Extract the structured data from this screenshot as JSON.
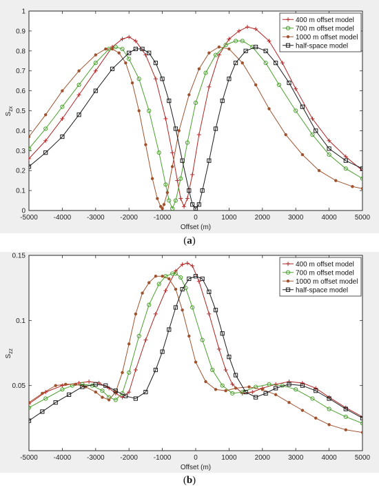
{
  "captions": {
    "a": "a",
    "b": "b"
  },
  "chart_data": [
    {
      "type": "line",
      "panel": "a",
      "xlabel": "Offset (m)",
      "ylabel": "S",
      "ylabel_sub": "zx",
      "xlim": [
        -5000,
        5000
      ],
      "ylim": [
        0,
        1
      ],
      "xticks": [
        -5000,
        -4000,
        -3000,
        -2000,
        -1000,
        0,
        1000,
        2000,
        3000,
        4000,
        5000
      ],
      "yticks": [
        0,
        0.1,
        0.2,
        0.3,
        0.4,
        0.5,
        0.6,
        0.7,
        0.8,
        0.9,
        1
      ],
      "legend_position": "top-right",
      "grid": false,
      "series": [
        {
          "name": "400 m offset model",
          "color": "#b22222",
          "marker": "plus",
          "x": [
            -5000,
            -4500,
            -4000,
            -3500,
            -3000,
            -2500,
            -2200,
            -2000,
            -1800,
            -1500,
            -1200,
            -900,
            -700,
            -550,
            -450,
            -350,
            -250,
            -100,
            100,
            400,
            700,
            1000,
            1300,
            1550,
            1800,
            2200,
            2600,
            3000,
            3500,
            4000,
            4500,
            5000
          ],
          "y": [
            0.26,
            0.35,
            0.46,
            0.58,
            0.7,
            0.82,
            0.86,
            0.87,
            0.85,
            0.78,
            0.66,
            0.46,
            0.29,
            0.15,
            0.06,
            0.02,
            0.06,
            0.18,
            0.38,
            0.62,
            0.78,
            0.86,
            0.9,
            0.92,
            0.91,
            0.85,
            0.74,
            0.61,
            0.46,
            0.35,
            0.27,
            0.2
          ]
        },
        {
          "name": "700 m offset model",
          "color": "#4aa02c",
          "marker": "circle",
          "x": [
            -5000,
            -4500,
            -4000,
            -3500,
            -3000,
            -2600,
            -2400,
            -2200,
            -2000,
            -1700,
            -1400,
            -1100,
            -900,
            -800,
            -700,
            -600,
            -450,
            -250,
            0,
            300,
            600,
            900,
            1200,
            1400,
            1700,
            2100,
            2500,
            3000,
            3500,
            4000,
            4500,
            5000
          ],
          "y": [
            0.31,
            0.41,
            0.52,
            0.63,
            0.74,
            0.81,
            0.82,
            0.81,
            0.76,
            0.66,
            0.5,
            0.29,
            0.13,
            0.05,
            0.01,
            0.05,
            0.16,
            0.34,
            0.54,
            0.69,
            0.78,
            0.83,
            0.85,
            0.85,
            0.82,
            0.74,
            0.63,
            0.5,
            0.38,
            0.28,
            0.21,
            0.16
          ]
        },
        {
          "name": "1000 m offset model",
          "color": "#a0522d",
          "marker": "dot",
          "x": [
            -5000,
            -4500,
            -4000,
            -3500,
            -3000,
            -2700,
            -2500,
            -2300,
            -2100,
            -1900,
            -1700,
            -1500,
            -1300,
            -1150,
            -1050,
            -1000,
            -950,
            -850,
            -700,
            -500,
            -200,
            100,
            400,
            700,
            1000,
            1400,
            1800,
            2200,
            2700,
            3200,
            3700,
            4200,
            4700,
            5000
          ],
          "y": [
            0.37,
            0.48,
            0.6,
            0.7,
            0.78,
            0.81,
            0.81,
            0.79,
            0.74,
            0.64,
            0.5,
            0.33,
            0.16,
            0.06,
            0.02,
            0.01,
            0.03,
            0.09,
            0.22,
            0.4,
            0.58,
            0.71,
            0.79,
            0.82,
            0.81,
            0.74,
            0.63,
            0.51,
            0.38,
            0.28,
            0.2,
            0.15,
            0.12,
            0.11
          ]
        },
        {
          "name": "half-space model",
          "color": "#1a1a1a",
          "marker": "square",
          "x": [
            -5000,
            -4500,
            -4000,
            -3500,
            -3000,
            -2500,
            -2000,
            -1800,
            -1600,
            -1400,
            -1200,
            -1000,
            -800,
            -600,
            -400,
            -200,
            -100,
            0,
            100,
            200,
            400,
            600,
            800,
            1000,
            1200,
            1500,
            1800,
            2100,
            2400,
            2800,
            3200,
            3600,
            4000,
            4500,
            5000
          ],
          "y": [
            0.22,
            0.29,
            0.37,
            0.48,
            0.6,
            0.71,
            0.79,
            0.81,
            0.81,
            0.79,
            0.74,
            0.66,
            0.55,
            0.41,
            0.25,
            0.1,
            0.03,
            0.01,
            0.03,
            0.1,
            0.25,
            0.41,
            0.55,
            0.66,
            0.74,
            0.8,
            0.82,
            0.8,
            0.74,
            0.64,
            0.52,
            0.4,
            0.31,
            0.25,
            0.21
          ]
        }
      ]
    },
    {
      "type": "line",
      "panel": "b",
      "xlabel": "Offset (m)",
      "ylabel": "S",
      "ylabel_sub": "zz",
      "xlim": [
        -5000,
        5000
      ],
      "ylim": [
        0,
        0.15
      ],
      "xticks": [
        -5000,
        -4000,
        -3000,
        -2000,
        -1000,
        0,
        1000,
        2000,
        3000,
        4000,
        5000
      ],
      "yticks": [
        0.05,
        0.1,
        0.15
      ],
      "legend_position": "top-right",
      "grid": false,
      "series": [
        {
          "name": "400 m offset model",
          "color": "#b22222",
          "marker": "plus",
          "x": [
            -5000,
            -4500,
            -4000,
            -3500,
            -3200,
            -2900,
            -2600,
            -2400,
            -2200,
            -2000,
            -1800,
            -1500,
            -1200,
            -900,
            -600,
            -400,
            -250,
            -100,
            100,
            400,
            700,
            900,
            1100,
            1400,
            1700,
            2000,
            2400,
            2800,
            3200,
            3600,
            4000,
            4500,
            5000
          ],
          "y": [
            0.036,
            0.045,
            0.05,
            0.052,
            0.053,
            0.052,
            0.048,
            0.044,
            0.041,
            0.045,
            0.062,
            0.085,
            0.105,
            0.123,
            0.138,
            0.143,
            0.144,
            0.142,
            0.13,
            0.105,
            0.078,
            0.062,
            0.051,
            0.044,
            0.045,
            0.048,
            0.051,
            0.053,
            0.052,
            0.048,
            0.041,
            0.033,
            0.026
          ]
        },
        {
          "name": "700 m offset model",
          "color": "#4aa02c",
          "marker": "circle",
          "x": [
            -5000,
            -4500,
            -4000,
            -3700,
            -3400,
            -3100,
            -2800,
            -2600,
            -2400,
            -2200,
            -2000,
            -1700,
            -1400,
            -1100,
            -900,
            -700,
            -600,
            -450,
            -300,
            -100,
            200,
            500,
            800,
            1100,
            1400,
            1800,
            2200,
            2600,
            3000,
            3500,
            4000,
            4500,
            5000
          ],
          "y": [
            0.033,
            0.04,
            0.047,
            0.05,
            0.051,
            0.05,
            0.046,
            0.041,
            0.039,
            0.044,
            0.06,
            0.088,
            0.112,
            0.128,
            0.134,
            0.136,
            0.136,
            0.133,
            0.125,
            0.11,
            0.085,
            0.062,
            0.05,
            0.044,
            0.045,
            0.049,
            0.051,
            0.05,
            0.047,
            0.04,
            0.032,
            0.026,
            0.021
          ]
        },
        {
          "name": "1000 m offset model",
          "color": "#a0522d",
          "marker": "dot",
          "x": [
            -5000,
            -4600,
            -4200,
            -3900,
            -3600,
            -3300,
            -3000,
            -2800,
            -2600,
            -2400,
            -2200,
            -2000,
            -1800,
            -1600,
            -1400,
            -1200,
            -1000,
            -800,
            -600,
            -400,
            -200,
            0,
            300,
            600,
            900,
            1200,
            1600,
            2000,
            2400,
            2800,
            3200,
            3600,
            4000,
            4500,
            5000
          ],
          "y": [
            0.037,
            0.044,
            0.05,
            0.051,
            0.051,
            0.049,
            0.045,
            0.041,
            0.039,
            0.045,
            0.06,
            0.082,
            0.105,
            0.121,
            0.129,
            0.134,
            0.134,
            0.132,
            0.124,
            0.108,
            0.088,
            0.068,
            0.053,
            0.047,
            0.046,
            0.048,
            0.049,
            0.047,
            0.043,
            0.037,
            0.031,
            0.025,
            0.02,
            0.016,
            0.014
          ]
        },
        {
          "name": "half-space model",
          "color": "#1a1a1a",
          "marker": "square",
          "x": [
            -5000,
            -4600,
            -4200,
            -3800,
            -3400,
            -3000,
            -2700,
            -2400,
            -2100,
            -1800,
            -1500,
            -1200,
            -1000,
            -800,
            -600,
            -400,
            -200,
            0,
            200,
            400,
            600,
            800,
            1000,
            1200,
            1500,
            1800,
            2100,
            2400,
            2800,
            3200,
            3600,
            4000,
            4500,
            5000
          ],
          "y": [
            0.023,
            0.03,
            0.037,
            0.043,
            0.049,
            0.051,
            0.05,
            0.046,
            0.042,
            0.04,
            0.045,
            0.062,
            0.076,
            0.093,
            0.11,
            0.124,
            0.132,
            0.134,
            0.132,
            0.122,
            0.108,
            0.09,
            0.072,
            0.058,
            0.045,
            0.041,
            0.044,
            0.048,
            0.051,
            0.05,
            0.046,
            0.04,
            0.032,
            0.025
          ]
        }
      ]
    }
  ]
}
